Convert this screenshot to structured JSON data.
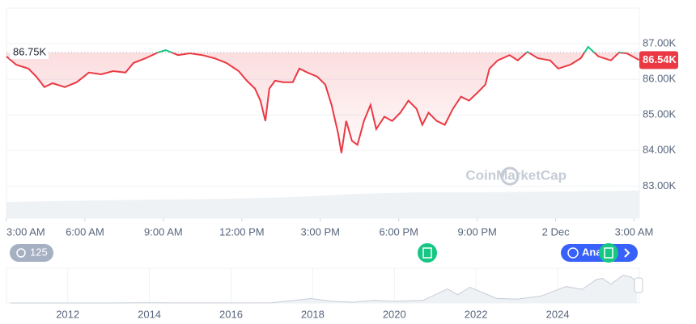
{
  "chart_data": {
    "type": "line",
    "watermark": "CoinMarketCap",
    "x": [
      0,
      0.37,
      0.84,
      1.14,
      1.45,
      1.76,
      2.23,
      2.69,
      3.15,
      3.62,
      4.08,
      4.55,
      4.86,
      5.32,
      5.78,
      6.09,
      6.56,
      7.02,
      7.49,
      7.95,
      8.41,
      8.88,
      9.19,
      9.5,
      9.71,
      9.9,
      10.05,
      10.27,
      10.58,
      10.95,
      11.2,
      11.51,
      11.88,
      12.19,
      12.43,
      12.68,
      12.81,
      12.99,
      13.21,
      13.42,
      13.67,
      13.92,
      14.14,
      14.45,
      14.75,
      15.06,
      15.37,
      15.68,
      15.9,
      16.14,
      16.45,
      16.76,
      17.07,
      17.38,
      17.69,
      18.0,
      18.31,
      18.47,
      18.78,
      19.24,
      19.55,
      19.92,
      20.32,
      20.79,
      21.1,
      21.56,
      21.96,
      22.24,
      22.64,
      23.11,
      23.42,
      23.72,
      24.19
    ],
    "values": [
      86640,
      86410,
      86300,
      86075,
      85780,
      85890,
      85780,
      85920,
      86190,
      86140,
      86230,
      86190,
      86460,
      86590,
      86750,
      86820,
      86680,
      86730,
      86680,
      86590,
      86460,
      86230,
      85960,
      85740,
      85400,
      84830,
      85740,
      85960,
      85920,
      85920,
      86300,
      86190,
      86075,
      85850,
      85280,
      84490,
      83930,
      84830,
      84270,
      84160,
      84830,
      85280,
      84600,
      84950,
      84830,
      85060,
      85400,
      85170,
      84720,
      85060,
      84830,
      84720,
      85170,
      85510,
      85400,
      85620,
      85850,
      86300,
      86530,
      86680,
      86530,
      86770,
      86590,
      86530,
      86300,
      86410,
      86590,
      86910,
      86640,
      86530,
      86750,
      86730,
      86540
    ],
    "color": "#ea3943",
    "up_color": "#16c784",
    "xlim": [
      0,
      24.2
    ],
    "xticks": [
      {
        "value": 0,
        "label": "3:00 AM"
      },
      {
        "value": 3,
        "label": "6:00 AM"
      },
      {
        "value": 6,
        "label": "9:00 AM"
      },
      {
        "value": 9,
        "label": "12:00 PM"
      },
      {
        "value": 12,
        "label": "3:00 PM"
      },
      {
        "value": 15,
        "label": "6:00 PM"
      },
      {
        "value": 18,
        "label": "9:00 PM"
      },
      {
        "value": 21,
        "label": "2 Dec"
      },
      {
        "value": 24,
        "label": "3:00 AM"
      }
    ],
    "ylim": [
      82100,
      88000
    ],
    "yticks": [
      {
        "value": 83000,
        "label": "83.00K"
      },
      {
        "value": 84000,
        "label": "84.00K"
      },
      {
        "value": 85000,
        "label": "85.00K"
      },
      {
        "value": 86000,
        "label": "86.00K"
      },
      {
        "value": 87000,
        "label": "87.00K"
      }
    ],
    "grid": true,
    "reference": {
      "value": 86750,
      "label": "86.75K"
    },
    "current": {
      "value": 86540,
      "label": "86.54K"
    },
    "badge": "125",
    "button": "Ana",
    "navigator": {
      "x": [
        2010.6,
        2013.0,
        2013.9,
        2014.5,
        2016.0,
        2017.0,
        2017.95,
        2018.5,
        2019.0,
        2019.5,
        2020.0,
        2020.7,
        2021.3,
        2021.55,
        2021.85,
        2022.5,
        2023.0,
        2023.6,
        2024.2,
        2024.6,
        2024.95,
        2025.1,
        2025.3,
        2025.6,
        2025.8,
        2025.95
      ],
      "values": [
        0,
        100,
        1000,
        500,
        400,
        1000,
        19000,
        7000,
        3500,
        11000,
        7000,
        11000,
        60000,
        35000,
        67000,
        20000,
        16500,
        30000,
        70000,
        58000,
        100000,
        105000,
        80000,
        118000,
        110000,
        87000
      ],
      "xlim": [
        2010.5,
        2026
      ],
      "ylim": [
        0,
        148000
      ],
      "xticks": [
        2012,
        2014,
        2016,
        2018,
        2020,
        2022,
        2024
      ]
    }
  }
}
